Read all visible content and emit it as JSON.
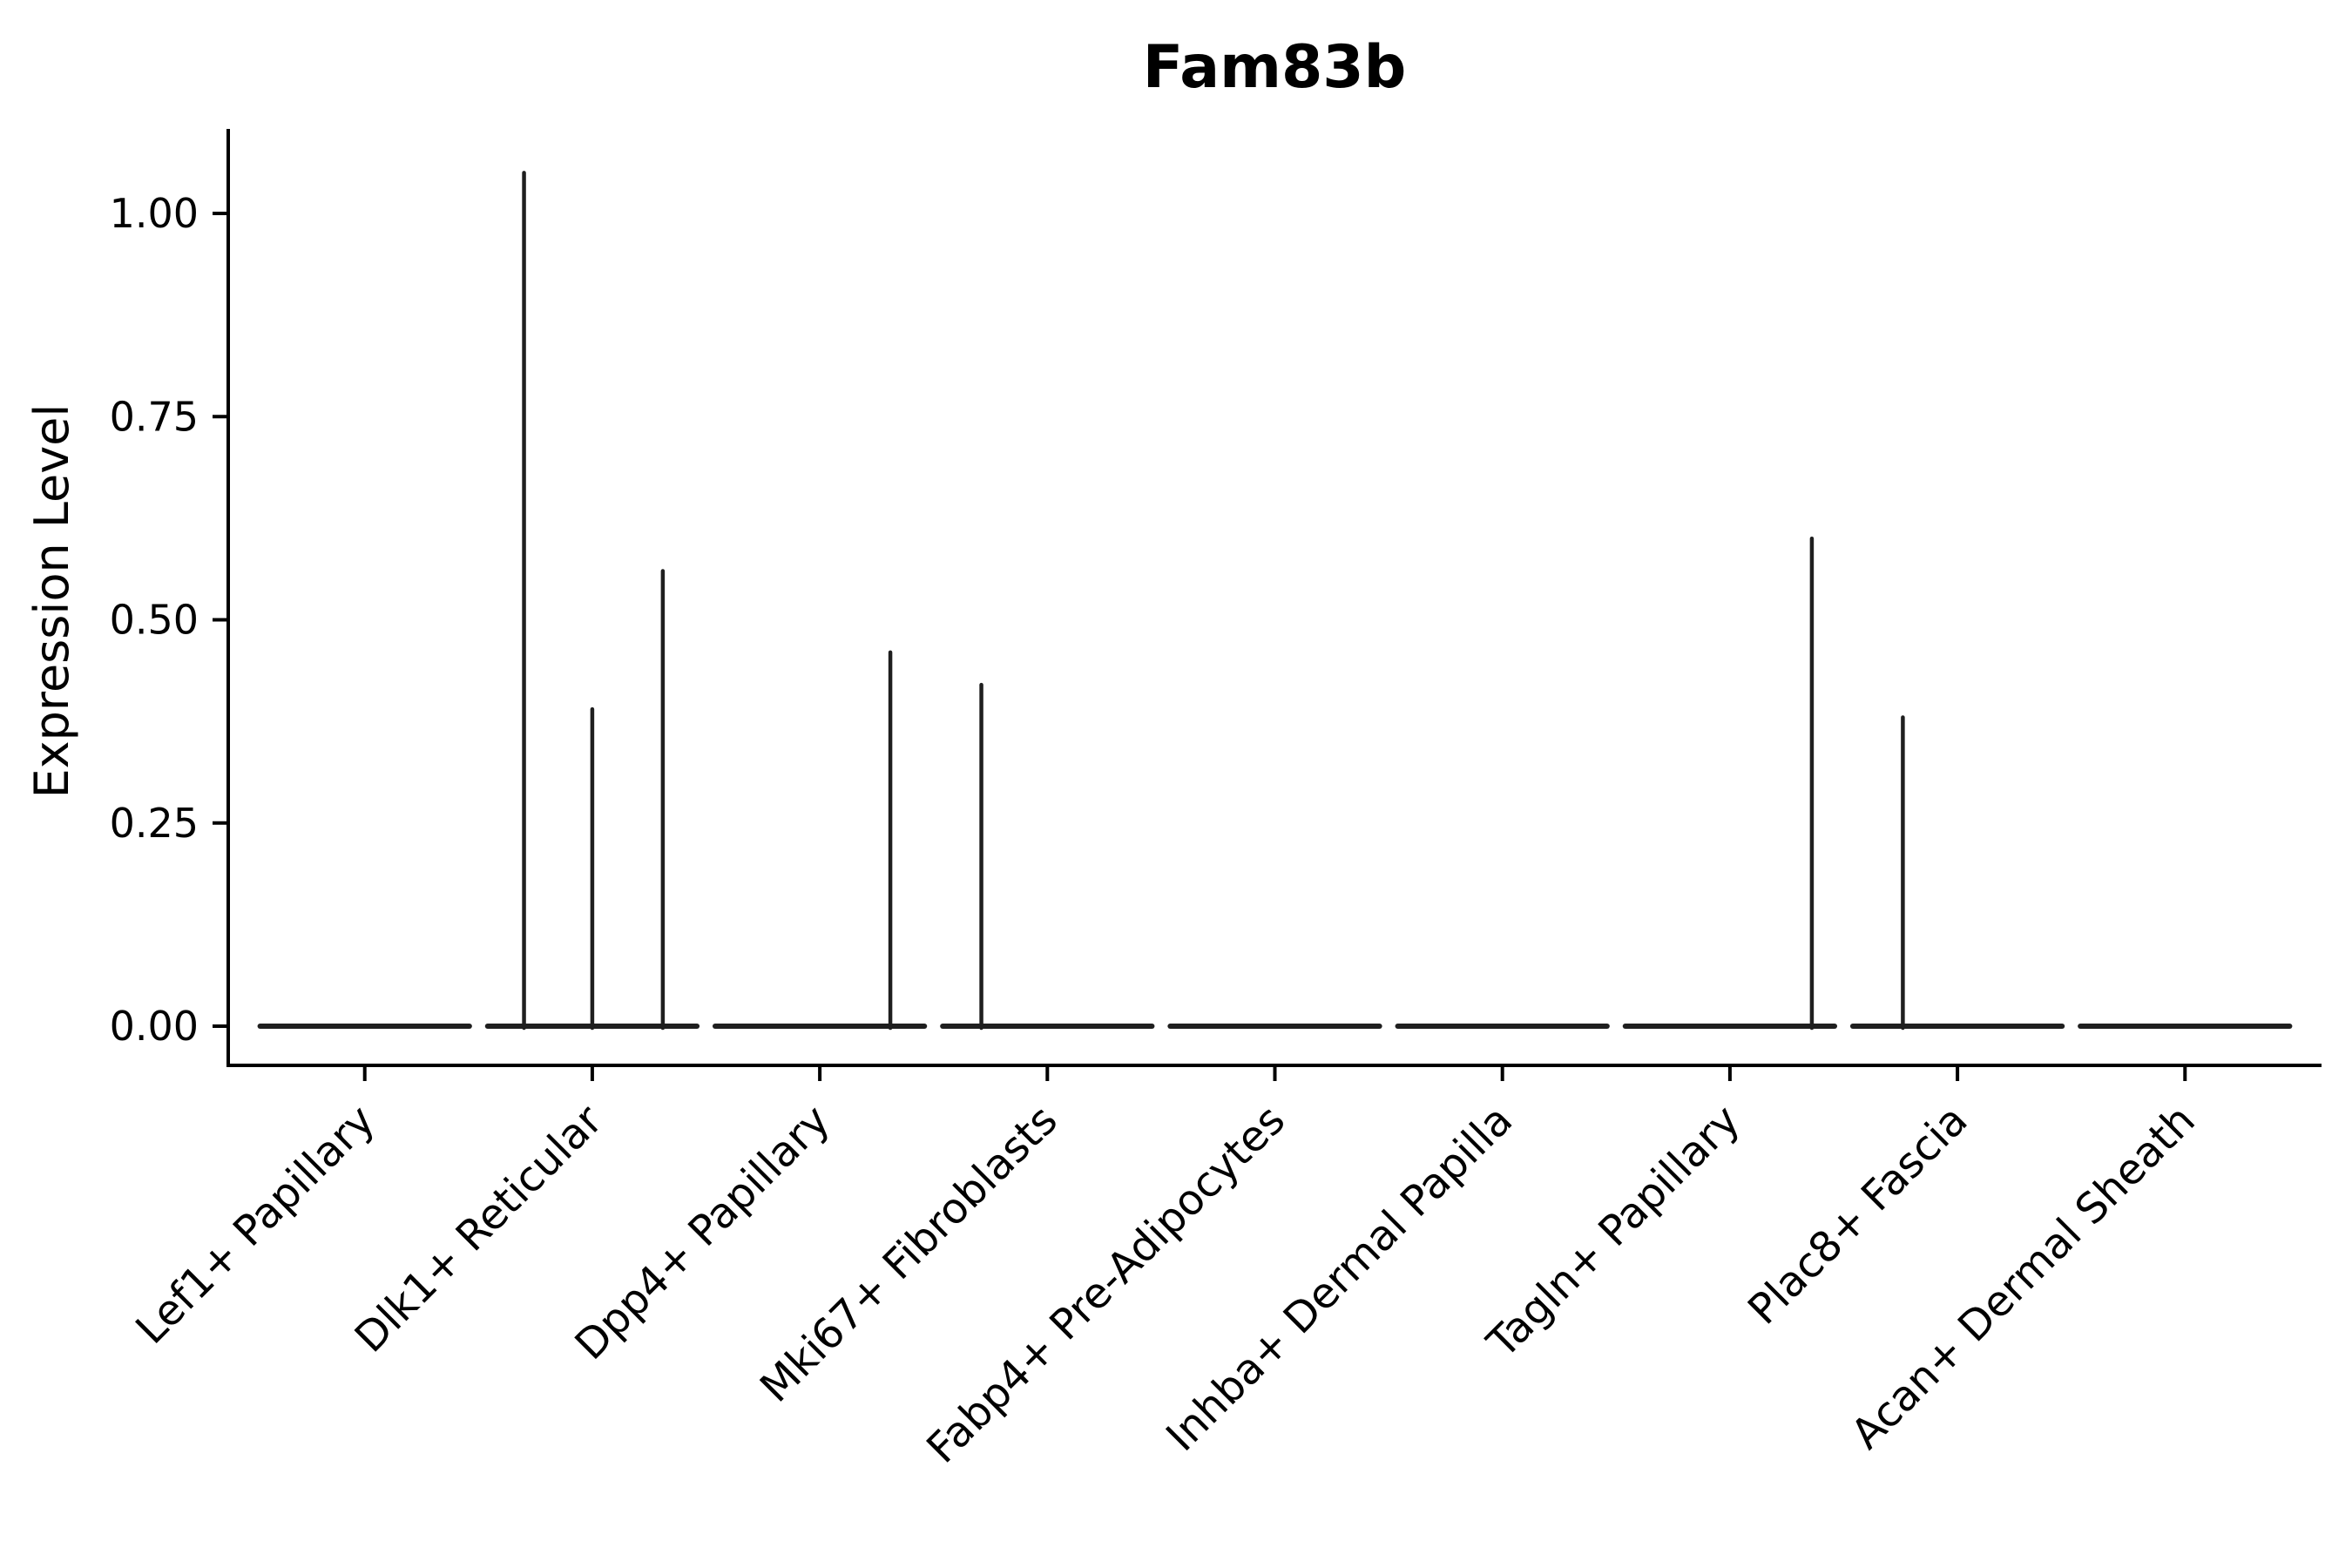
{
  "chart_data": {
    "type": "violin",
    "title": "Fam83b",
    "xlabel": "",
    "ylabel": "Expression Level",
    "background": "#ffffff",
    "color": "#1f1f1f",
    "axis_color": "#000000",
    "legend": "none",
    "grid": false,
    "ylim": [
      0,
      1.1
    ],
    "violin_width": 0.92,
    "y_ticks": [
      {
        "value": 0.0,
        "label": "0.00"
      },
      {
        "value": 0.25,
        "label": "0.25"
      },
      {
        "value": 0.5,
        "label": "0.50"
      },
      {
        "value": 0.75,
        "label": "0.75"
      },
      {
        "value": 1.0,
        "label": "1.00"
      }
    ],
    "categories": [
      "Lef1+ Papillary",
      "Dlk1+ Reticular",
      "Dpp4+ Papillary",
      "Mki67+ Fibroblasts",
      "Fabp4+ Pre-Adipocytes",
      "Inhba+ Dermal Papilla",
      "Tagln+ Papillary",
      "Plac8+ Fascia",
      "Acan+ Dermal Sheath"
    ],
    "violins": [
      {
        "category": "Lef1+ Papillary",
        "baseline_value": 0,
        "spikes": []
      },
      {
        "category": "Dlk1+ Reticular",
        "baseline_value": 0,
        "spikes": [
          {
            "offset": -0.3,
            "value": 1.05
          },
          {
            "offset": 0.0,
            "value": 0.39
          },
          {
            "offset": 0.31,
            "value": 0.56
          }
        ]
      },
      {
        "category": "Dpp4+ Papillary",
        "baseline_value": 0,
        "spikes": [
          {
            "offset": 0.31,
            "value": 0.46
          }
        ]
      },
      {
        "category": "Mki67+ Fibroblasts",
        "baseline_value": 0,
        "spikes": [
          {
            "offset": -0.29,
            "value": 0.42
          }
        ]
      },
      {
        "category": "Fabp4+ Pre-Adipocytes",
        "baseline_value": 0,
        "spikes": []
      },
      {
        "category": "Inhba+ Dermal Papilla",
        "baseline_value": 0,
        "spikes": []
      },
      {
        "category": "Tagln+ Papillary",
        "baseline_value": 0,
        "spikes": [
          {
            "offset": 0.36,
            "value": 0.6
          }
        ]
      },
      {
        "category": "Plac8+ Fascia",
        "baseline_value": 0,
        "spikes": [
          {
            "offset": -0.24,
            "value": 0.38
          }
        ]
      },
      {
        "category": "Acan+ Dermal Sheath",
        "baseline_value": 0,
        "spikes": []
      }
    ]
  }
}
